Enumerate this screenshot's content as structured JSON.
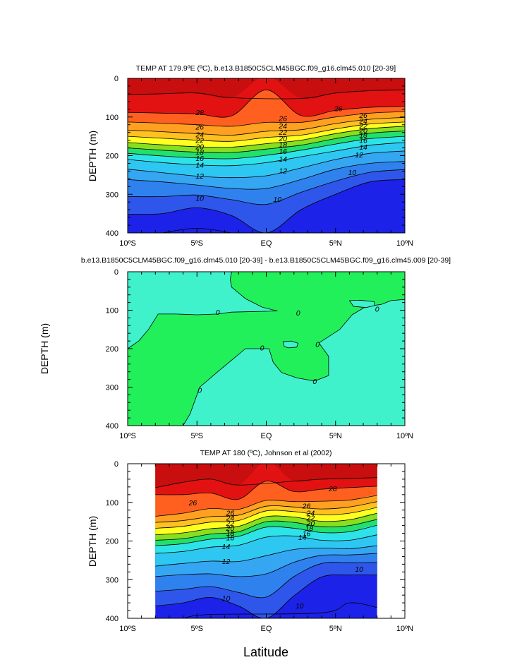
{
  "figure": {
    "xlabel": "Latitude"
  },
  "colors": {
    "temperature_fill": [
      "#1d22e8",
      "#2f56ea",
      "#2f82ee",
      "#35a6f2",
      "#2ec7f2",
      "#2de3e8",
      "#22e2b0",
      "#22e06b",
      "#18d21e",
      "#86df1f",
      "#cfe31f",
      "#ffff20",
      "#ffe020",
      "#ffc020",
      "#ffa020",
      "#ff8020",
      "#ff6020",
      "#ff3a1a",
      "#e21212",
      "#c80e0e"
    ],
    "difference_fill": {
      "negative": "#3ff2cc",
      "positive": "#22f05a"
    },
    "contour_line": "#000000"
  },
  "chart_data": [
    {
      "type": "contour",
      "title": "TEMP AT 179.9ºE (ºC), b.e13.B1850C5CLM45BGC.f09_g16.clm45.010 [20-39]",
      "xlabel": "",
      "ylabel": "DEPTH (m)",
      "x_unit": "degrees latitude",
      "y_unit": "m",
      "xlim": [
        -10,
        10
      ],
      "ylim": [
        400,
        0
      ],
      "y_reversed": true,
      "xticks": [
        -10,
        -5,
        0,
        5,
        10
      ],
      "xtick_labels": [
        "10ºS",
        "5ºS",
        "EQ",
        "5ºN",
        "10ºN"
      ],
      "yticks": [
        0,
        100,
        200,
        300,
        400
      ],
      "ytick_labels": [
        "0",
        "100",
        "200",
        "300",
        "400"
      ],
      "contour_levels": [
        8,
        9,
        10,
        11,
        12,
        13,
        14,
        15,
        16,
        17,
        18,
        19,
        20,
        21,
        22,
        23,
        24,
        25,
        26,
        27,
        28,
        29
      ],
      "isotherm_depths": {
        "latitudes": [
          -10,
          -7.5,
          -5,
          -2.5,
          0,
          2.5,
          5,
          7.5,
          10
        ],
        "series": [
          {
            "level": 29,
            "depth": [
              42,
              40,
              38,
              50,
              null,
              52,
              38,
              32,
              30
            ]
          },
          {
            "level": 28,
            "depth": [
              88,
              90,
              92,
              97,
              30,
              96,
              83,
              75,
              72
            ]
          },
          {
            "level": 26,
            "depth": [
              113,
              116,
              120,
              124,
              114,
              114,
              100,
              90,
              86
            ]
          },
          {
            "level": 24,
            "depth": [
              134,
              138,
              143,
              147,
              137,
              133,
              117,
              106,
              101
            ]
          },
          {
            "level": 22,
            "depth": [
              150,
              155,
              160,
              163,
              153,
              147,
              131,
              118,
              113
            ]
          },
          {
            "level": 20,
            "depth": [
              166,
              172,
              177,
              178,
              169,
              160,
              143,
              130,
              124
            ]
          },
          {
            "level": 18,
            "depth": [
              180,
              186,
              191,
              192,
              183,
              173,
              156,
              142,
              136
            ]
          },
          {
            "level": 16,
            "depth": [
              194,
              201,
              206,
              208,
              199,
              186,
              170,
              156,
              150
            ]
          },
          {
            "level": 14,
            "depth": [
              210,
              218,
              224,
              226,
              218,
              203,
              188,
              173,
              166
            ]
          },
          {
            "level": 12,
            "depth": [
              235,
              244,
              253,
              257,
              252,
              232,
              210,
              194,
              188
            ]
          },
          {
            "level": 11,
            "depth": [
              262,
              268,
              276,
              285,
              285,
              262,
              235,
              220,
              215
            ]
          },
          {
            "level": 10,
            "depth": [
              306,
              306,
              302,
              314,
              326,
              295,
              266,
              243,
              236
            ]
          },
          {
            "level": 9,
            "depth": [
              352,
              350,
              335,
              355,
              400,
              340,
              300,
              268,
              262
            ]
          },
          {
            "level": 8,
            "depth": [
              null,
              400,
              388,
              400,
              null,
              null,
              null,
              null,
              null
            ]
          }
        ]
      },
      "contour_labels": [
        {
          "text": "28",
          "lat": -4.8,
          "depth": 88
        },
        {
          "text": "26",
          "lat": -4.8,
          "depth": 125
        },
        {
          "text": "24",
          "lat": -4.8,
          "depth": 145
        },
        {
          "text": "22",
          "lat": -4.8,
          "depth": 160
        },
        {
          "text": "20",
          "lat": -4.8,
          "depth": 176
        },
        {
          "text": "18",
          "lat": -4.8,
          "depth": 190
        },
        {
          "text": "16",
          "lat": -4.8,
          "depth": 206
        },
        {
          "text": "14",
          "lat": -4.8,
          "depth": 224
        },
        {
          "text": "12",
          "lat": -4.8,
          "depth": 252
        },
        {
          "text": "10",
          "lat": -4.8,
          "depth": 310
        },
        {
          "text": "26",
          "lat": 1.2,
          "depth": 103
        },
        {
          "text": "24",
          "lat": 1.2,
          "depth": 122
        },
        {
          "text": "22",
          "lat": 1.2,
          "depth": 139
        },
        {
          "text": "20",
          "lat": 1.2,
          "depth": 155
        },
        {
          "text": "18",
          "lat": 1.2,
          "depth": 171
        },
        {
          "text": "16",
          "lat": 1.2,
          "depth": 188
        },
        {
          "text": "14",
          "lat": 1.2,
          "depth": 208
        },
        {
          "text": "12",
          "lat": 1.2,
          "depth": 238
        },
        {
          "text": "10",
          "lat": 0.8,
          "depth": 312
        },
        {
          "text": "26",
          "lat": 5.2,
          "depth": 78
        },
        {
          "text": "26",
          "lat": 7.0,
          "depth": 95
        },
        {
          "text": "24",
          "lat": 7.0,
          "depth": 110
        },
        {
          "text": "22",
          "lat": 7.0,
          "depth": 122
        },
        {
          "text": "20",
          "lat": 7.0,
          "depth": 134
        },
        {
          "text": "18",
          "lat": 7.0,
          "depth": 146
        },
        {
          "text": "16",
          "lat": 7.0,
          "depth": 160
        },
        {
          "text": "14",
          "lat": 7.0,
          "depth": 177
        },
        {
          "text": "12",
          "lat": 6.7,
          "depth": 197
        },
        {
          "text": "10",
          "lat": 6.2,
          "depth": 243
        }
      ]
    },
    {
      "type": "contour",
      "title": "b.e13.B1850C5CLM45BGC.f09_g16.clm45.010 [20-39] - b.e13.B1850C5CLM45BGC.f09_g16.clm45.009 [20-39]",
      "xlabel": "",
      "ylabel": "DEPTH (m)",
      "x_unit": "degrees latitude",
      "y_unit": "m",
      "xlim": [
        -10,
        10
      ],
      "ylim": [
        400,
        0
      ],
      "y_reversed": true,
      "xticks": [
        -10,
        -5,
        0,
        5,
        10
      ],
      "xtick_labels": [
        "10ºS",
        "5ºS",
        "EQ",
        "5ºN",
        "10ºN"
      ],
      "yticks": [
        0,
        100,
        200,
        300,
        400
      ],
      "ytick_labels": [
        "0",
        "100",
        "200",
        "300",
        "400"
      ],
      "contour_levels": [
        0
      ],
      "zero_contour_boundary": [
        [
          -2.5,
          0
        ],
        [
          -2.6,
          20
        ],
        [
          -2.5,
          40
        ],
        [
          -1.5,
          70
        ],
        [
          -0.3,
          92
        ],
        [
          0.8,
          102
        ],
        [
          -2.5,
          105
        ],
        [
          -3.5,
          110
        ],
        [
          -5,
          112
        ],
        [
          -6.5,
          110
        ],
        [
          -7.8,
          110
        ],
        [
          -8.5,
          150
        ],
        [
          -9.2,
          180
        ],
        [
          -10,
          200
        ],
        [
          -10,
          400
        ],
        [
          -6,
          400
        ],
        [
          -5.5,
          370
        ],
        [
          -4.8,
          300
        ],
        [
          -3.5,
          260
        ],
        [
          -1.5,
          200
        ],
        [
          0.2,
          200
        ],
        [
          0.5,
          235
        ],
        [
          1.1,
          262
        ],
        [
          2.2,
          276
        ],
        [
          3.5,
          284
        ],
        [
          4.5,
          270
        ],
        [
          4.5,
          220
        ],
        [
          3.8,
          185
        ],
        [
          5.3,
          150
        ],
        [
          6.2,
          112
        ],
        [
          7.2,
          90
        ],
        [
          8.3,
          85
        ],
        [
          9.0,
          75
        ],
        [
          10,
          72
        ],
        [
          10,
          0
        ]
      ],
      "negative_lobes": [
        {
          "description": "upper-right pocket",
          "points": [
            [
              6.0,
              75
            ],
            [
              6.3,
              90
            ],
            [
              7.2,
              93
            ],
            [
              7.8,
              88
            ],
            [
              7.8,
              78
            ],
            [
              6.8,
              74
            ]
          ]
        },
        {
          "description": "central island",
          "points": [
            [
              1.2,
              182
            ],
            [
              1.3,
              194
            ],
            [
              1.6,
              198
            ],
            [
              2.2,
              196
            ],
            [
              2.3,
              186
            ],
            [
              1.8,
              180
            ]
          ]
        }
      ],
      "contour_labels": [
        {
          "text": "0",
          "lat": -3.5,
          "depth": 105
        },
        {
          "text": "0",
          "lat": 2.3,
          "depth": 106
        },
        {
          "text": "0",
          "lat": 8.0,
          "depth": 96
        },
        {
          "text": "0",
          "lat": -0.3,
          "depth": 197
        },
        {
          "text": "0",
          "lat": 3.7,
          "depth": 188
        },
        {
          "text": "0",
          "lat": 3.5,
          "depth": 284
        },
        {
          "text": "0",
          "lat": -4.8,
          "depth": 307
        }
      ]
    },
    {
      "type": "contour",
      "title": "TEMP AT 180 (ºC), Johnson et al (2002)",
      "xlabel": "",
      "ylabel": "DEPTH (m)",
      "x_unit": "degrees latitude",
      "y_unit": "m",
      "xlim": [
        -10,
        10
      ],
      "ylim": [
        400,
        0
      ],
      "y_reversed": true,
      "data_extent_lat": [
        -8,
        8
      ],
      "xticks": [
        -10,
        -5,
        0,
        5,
        10
      ],
      "xtick_labels": [
        "10ºS",
        "5ºS",
        "EQ",
        "5ºN",
        "10ºN"
      ],
      "yticks": [
        0,
        100,
        200,
        300,
        400
      ],
      "ytick_labels": [
        "0",
        "100",
        "200",
        "300",
        "400"
      ],
      "contour_levels": [
        8,
        9,
        10,
        11,
        12,
        13,
        14,
        15,
        16,
        17,
        18,
        19,
        20,
        21,
        22,
        23,
        24,
        25,
        26,
        27,
        28,
        29
      ],
      "isotherm_depths": {
        "latitudes": [
          -8,
          -6,
          -4,
          -2,
          0,
          2,
          4,
          6,
          8
        ],
        "series": [
          {
            "level": 29,
            "depth": [
              62,
              48,
              40,
              55,
              null,
              45,
              40,
              38,
              36
            ]
          },
          {
            "level": 28,
            "depth": [
              80,
              80,
              76,
              92,
              45,
              72,
              66,
              62,
              58
            ]
          },
          {
            "level": 26,
            "depth": [
              136,
              128,
              116,
              118,
              95,
              98,
              97,
              94,
              82
            ]
          },
          {
            "level": 24,
            "depth": [
              152,
              147,
              137,
              133,
              110,
              112,
              117,
              112,
              98
            ]
          },
          {
            "level": 22,
            "depth": [
              167,
              162,
              151,
              147,
              122,
              124,
              132,
              128,
              113
            ]
          },
          {
            "level": 20,
            "depth": [
              184,
              179,
              168,
              162,
              137,
              138,
              149,
              145,
              128
            ]
          },
          {
            "level": 18,
            "depth": [
              198,
              194,
              182,
              176,
              150,
              152,
              163,
              160,
              144
            ]
          },
          {
            "level": 16,
            "depth": [
              212,
              207,
              195,
              188,
              164,
              167,
              178,
              176,
              159
            ]
          },
          {
            "level": 14,
            "depth": [
              232,
              227,
              216,
              211,
              190,
              187,
              198,
              198,
              184
            ]
          },
          {
            "level": 12,
            "depth": [
              265,
              258,
              252,
              253,
              238,
              222,
              218,
              220,
              212
            ]
          },
          {
            "level": 11,
            "depth": [
              292,
              287,
              285,
              292,
              285,
              255,
              237,
              236,
              232
            ]
          },
          {
            "level": 10,
            "depth": [
              330,
              325,
              318,
              333,
              345,
              292,
              258,
              256,
              256
            ]
          },
          {
            "level": 9,
            "depth": [
              368,
              360,
              346,
              368,
              400,
              342,
              293,
              288,
              288
            ]
          },
          {
            "level": 8,
            "depth": [
              null,
              400,
              390,
              null,
              null,
              null,
              386,
              360,
              372
            ]
          }
        ]
      },
      "contour_labels": [
        {
          "text": "26",
          "lat": -5.3,
          "depth": 100
        },
        {
          "text": "28",
          "lat": 4.8,
          "depth": 64
        },
        {
          "text": "26",
          "lat": -2.6,
          "depth": 127
        },
        {
          "text": "24",
          "lat": -2.6,
          "depth": 140
        },
        {
          "text": "22",
          "lat": -2.6,
          "depth": 153
        },
        {
          "text": "20",
          "lat": -2.6,
          "depth": 166
        },
        {
          "text": "18",
          "lat": -2.6,
          "depth": 179
        },
        {
          "text": "16",
          "lat": -2.6,
          "depth": 191
        },
        {
          "text": "14",
          "lat": -2.9,
          "depth": 214
        },
        {
          "text": "12",
          "lat": -2.9,
          "depth": 252
        },
        {
          "text": "10",
          "lat": -2.9,
          "depth": 348
        },
        {
          "text": "26",
          "lat": 2.9,
          "depth": 109
        },
        {
          "text": "24",
          "lat": 3.2,
          "depth": 127
        },
        {
          "text": "22",
          "lat": 3.2,
          "depth": 140
        },
        {
          "text": "20",
          "lat": 3.2,
          "depth": 153
        },
        {
          "text": "18",
          "lat": 3.1,
          "depth": 166
        },
        {
          "text": "16",
          "lat": 2.9,
          "depth": 180
        },
        {
          "text": "14",
          "lat": 2.6,
          "depth": 190
        },
        {
          "text": "10",
          "lat": 6.7,
          "depth": 272
        },
        {
          "text": "10",
          "lat": 2.4,
          "depth": 367
        }
      ]
    }
  ]
}
